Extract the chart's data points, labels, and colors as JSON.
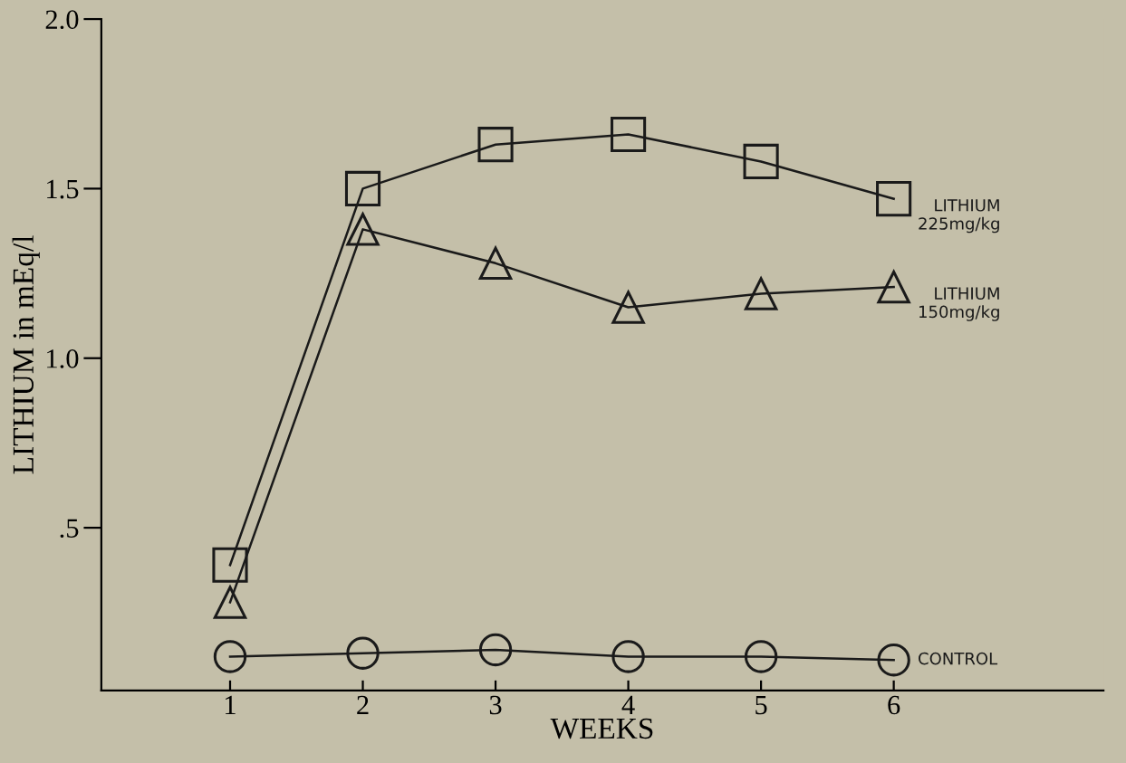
{
  "chart_data": {
    "type": "line",
    "xlabel": "WEEKS",
    "ylabel": "LITHIUM in mEq/l",
    "x": [
      1,
      2,
      3,
      4,
      5,
      6
    ],
    "xlim": [
      0.03,
      7.58
    ],
    "xticks": [
      1,
      2,
      3,
      4,
      5,
      6
    ],
    "ylim": [
      0.02,
      2.0
    ],
    "yticks": [
      {
        "value": 0.5,
        "label": ".5"
      },
      {
        "value": 1.0,
        "label": "1.0"
      },
      {
        "value": 1.5,
        "label": "1.5"
      },
      {
        "value": 2.0,
        "label": "2.0"
      }
    ],
    "grid": false,
    "legend": false,
    "series": [
      {
        "name": "LITHIUM\n225mg/kg",
        "color": "#1a1a1a",
        "marker": "square",
        "values": [
          0.39,
          1.5,
          1.63,
          1.66,
          1.58,
          1.47
        ]
      },
      {
        "name": "LITHIUM\n150mg/kg",
        "color": "#1a1a1a",
        "marker": "triangle",
        "values": [
          0.28,
          1.38,
          1.28,
          1.15,
          1.19,
          1.21
        ]
      },
      {
        "name": "CONTROL",
        "color": "#1a1a1a",
        "marker": "circle",
        "values": [
          0.12,
          0.13,
          0.14,
          0.12,
          0.12,
          0.11
        ]
      }
    ]
  }
}
